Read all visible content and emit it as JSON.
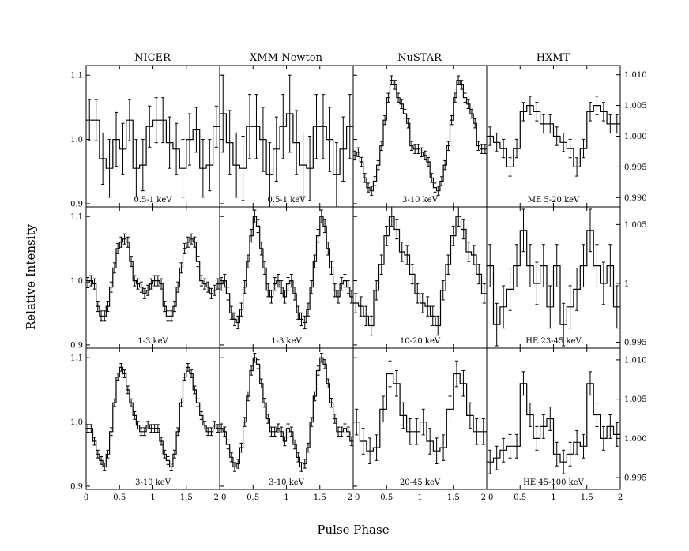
{
  "figure": {
    "xlabel": "Pulse Phase",
    "ylabel": "Relative Intensity",
    "columns": [
      "NICER",
      "XMM-Newton",
      "NuSTAR",
      "HXMT"
    ]
  },
  "chart_data": {
    "type": "line",
    "grid": false,
    "legend": "none",
    "layout_grid": "3x4",
    "xlabel": "Pulse Phase",
    "ylabel": "Relative Intensity",
    "x_ticks": [
      "0",
      "0.5",
      "1",
      "1.5",
      "2"
    ],
    "panels": [
      {
        "column": "NICER",
        "label": "0.5-1 keV",
        "xlim": [
          0,
          2
        ],
        "ylim": [
          0.895,
          1.115
        ],
        "y_ticks": [
          {
            "v": 0.9,
            "t": "0.9"
          },
          {
            "v": 1.0,
            "t": "1.0"
          },
          {
            "v": 1.1,
            "t": "1.1"
          }
        ],
        "y_axis": "left",
        "values": [
          1.03,
          1.03,
          0.97,
          0.955,
          1.0,
          0.985,
          1.03,
          0.955,
          0.96,
          1.02,
          1.03,
          1.03,
          0.995,
          0.985,
          0.955,
          1.0,
          1.015,
          0.955,
          0.96,
          1.02
        ],
        "errors": [
          0.032,
          0.032,
          0.04,
          0.045,
          0.042,
          0.04,
          0.032,
          0.045,
          0.04,
          0.032,
          0.035,
          0.035,
          0.04,
          0.04,
          0.045,
          0.04,
          0.035,
          0.045,
          0.04,
          0.032
        ]
      },
      {
        "column": "XMM-Newton",
        "label": "0.5-1 keV",
        "xlim": [
          0,
          2
        ],
        "ylim": [
          0.895,
          1.115
        ],
        "y_ticks": [
          {
            "v": 0.9,
            "t": ""
          },
          {
            "v": 1.0,
            "t": ""
          },
          {
            "v": 1.1,
            "t": ""
          }
        ],
        "y_axis": "left",
        "values": [
          1.04,
          0.995,
          0.96,
          0.955,
          1.02,
          1.02,
          1.0,
          0.945,
          0.985,
          1.02,
          1.04,
          0.995,
          0.96,
          0.955,
          1.02,
          1.02,
          1.0,
          0.945,
          0.985,
          1.02
        ],
        "errors": [
          0.06,
          0.05,
          0.05,
          0.05,
          0.05,
          0.05,
          0.05,
          0.05,
          0.05,
          0.05,
          0.06,
          0.05,
          0.05,
          0.05,
          0.05,
          0.05,
          0.05,
          0.05,
          0.05,
          0.05
        ]
      },
      {
        "column": "NuSTAR",
        "label": "3-10 keV",
        "xlim": [
          0,
          2
        ],
        "ylim": [
          0.895,
          1.115
        ],
        "y_ticks": [
          {
            "v": 0.9,
            "t": ""
          },
          {
            "v": 1.0,
            "t": ""
          },
          {
            "v": 1.1,
            "t": ""
          }
        ],
        "y_axis": "left",
        "values": [
          0.975,
          0.98,
          0.965,
          0.94,
          0.925,
          0.92,
          0.935,
          0.96,
          0.99,
          1.03,
          1.065,
          1.092,
          1.085,
          1.065,
          1.055,
          1.04,
          1.025,
          0.99,
          0.985,
          0.985,
          0.98,
          0.975,
          0.965,
          0.94,
          0.925,
          0.92,
          0.935,
          0.96,
          0.99,
          1.03,
          1.065,
          1.092,
          1.085,
          1.065,
          1.055,
          1.04,
          1.025,
          0.99,
          0.985,
          0.985
        ],
        "errors": [
          0.007,
          0.007,
          0.007,
          0.007,
          0.007,
          0.007,
          0.007,
          0.007,
          0.007,
          0.007,
          0.007,
          0.007,
          0.007,
          0.007,
          0.007,
          0.007,
          0.007,
          0.007,
          0.007,
          0.007,
          0.007,
          0.007,
          0.007,
          0.007,
          0.007,
          0.007,
          0.007,
          0.007,
          0.007,
          0.007,
          0.007,
          0.007,
          0.007,
          0.007,
          0.007,
          0.007,
          0.007,
          0.007,
          0.007,
          0.007
        ]
      },
      {
        "column": "HXMT",
        "label": "ME 5-20 keV",
        "xlim": [
          0,
          2
        ],
        "ylim": [
          0.9885,
          1.0115
        ],
        "y_ticks": [
          {
            "v": 0.99,
            "t": "0.990"
          },
          {
            "v": 0.995,
            "t": "0.995"
          },
          {
            "v": 1.0,
            "t": "1.000"
          },
          {
            "v": 1.005,
            "t": "1.005"
          },
          {
            "v": 1.01,
            "t": "1.010"
          }
        ],
        "y_axis": "right",
        "values": [
          1.0,
          0.999,
          0.998,
          0.995,
          0.998,
          1.004,
          1.005,
          1.004,
          1.002,
          1.002,
          1.0,
          0.999,
          0.998,
          0.995,
          0.998,
          1.004,
          1.005,
          1.004,
          1.002,
          1.002
        ],
        "errors": [
          0.0015,
          0.0015,
          0.0015,
          0.0015,
          0.0015,
          0.0015,
          0.0015,
          0.0015,
          0.0015,
          0.0015,
          0.0015,
          0.0015,
          0.0015,
          0.0015,
          0.0015,
          0.0015,
          0.0015,
          0.0015,
          0.0015,
          0.0015
        ]
      },
      {
        "column": "NICER",
        "label": "1-3 keV",
        "xlim": [
          0,
          2
        ],
        "ylim": [
          0.895,
          1.115
        ],
        "y_ticks": [
          {
            "v": 0.9,
            "t": "0.9"
          },
          {
            "v": 1.0,
            "t": "1.0"
          },
          {
            "v": 1.1,
            "t": "1.1"
          }
        ],
        "y_axis": "left",
        "values": [
          0.997,
          1.0,
          0.995,
          0.96,
          0.945,
          0.945,
          0.96,
          0.99,
          1.02,
          1.05,
          1.06,
          1.065,
          1.06,
          1.03,
          1.0,
          0.995,
          0.99,
          0.98,
          0.985,
          0.995,
          1.0,
          1.0,
          0.995,
          0.96,
          0.945,
          0.945,
          0.96,
          0.99,
          1.02,
          1.05,
          1.06,
          1.065,
          1.06,
          1.03,
          1.0,
          0.995,
          0.99,
          0.98,
          0.985,
          0.995
        ],
        "errors": [
          0.008,
          0.008,
          0.008,
          0.008,
          0.008,
          0.008,
          0.008,
          0.008,
          0.008,
          0.008,
          0.008,
          0.008,
          0.008,
          0.008,
          0.008,
          0.008,
          0.008,
          0.008,
          0.008,
          0.008,
          0.008,
          0.008,
          0.008,
          0.008,
          0.008,
          0.008,
          0.008,
          0.008,
          0.008,
          0.008,
          0.008,
          0.008,
          0.008,
          0.008,
          0.008,
          0.008,
          0.008,
          0.008,
          0.008,
          0.008
        ]
      },
      {
        "column": "XMM-Newton",
        "label": "1-3 keV",
        "xlim": [
          0,
          2
        ],
        "ylim": [
          0.895,
          1.115
        ],
        "y_ticks": [
          {
            "v": 0.9,
            "t": ""
          },
          {
            "v": 1.0,
            "t": ""
          },
          {
            "v": 1.1,
            "t": ""
          }
        ],
        "y_axis": "left",
        "values": [
          0.995,
          1.0,
          0.98,
          0.95,
          0.94,
          0.935,
          0.955,
          0.99,
          1.03,
          1.07,
          1.1,
          1.085,
          1.05,
          1.02,
          0.985,
          0.975,
          0.995,
          1.0,
          0.99,
          0.975,
          0.995,
          1.0,
          0.98,
          0.95,
          0.94,
          0.935,
          0.955,
          0.99,
          1.03,
          1.07,
          1.1,
          1.085,
          1.05,
          1.02,
          0.985,
          0.975,
          0.995,
          1.0,
          0.99,
          0.975
        ],
        "errors": [
          0.01,
          0.01,
          0.01,
          0.01,
          0.01,
          0.01,
          0.01,
          0.01,
          0.01,
          0.01,
          0.01,
          0.01,
          0.01,
          0.01,
          0.01,
          0.01,
          0.01,
          0.01,
          0.01,
          0.01,
          0.01,
          0.01,
          0.01,
          0.01,
          0.01,
          0.01,
          0.01,
          0.01,
          0.01,
          0.01,
          0.01,
          0.01,
          0.01,
          0.01,
          0.01,
          0.01,
          0.01,
          0.01,
          0.01,
          0.01
        ]
      },
      {
        "column": "NuSTAR",
        "label": "10-20 keV",
        "xlim": [
          0,
          2
        ],
        "ylim": [
          0.895,
          1.115
        ],
        "y_ticks": [
          {
            "v": 0.9,
            "t": ""
          },
          {
            "v": 1.0,
            "t": ""
          },
          {
            "v": 1.1,
            "t": ""
          }
        ],
        "y_axis": "left",
        "values": [
          0.965,
          0.96,
          0.945,
          0.93,
          0.985,
          1.025,
          1.07,
          1.1,
          1.08,
          1.045,
          1.04,
          1.01,
          0.98,
          0.965,
          0.96,
          0.945,
          0.93,
          0.985,
          1.025,
          1.07,
          1.1,
          1.08,
          1.045,
          1.04,
          1.01,
          0.98
        ],
        "errors": [
          0.015,
          0.015,
          0.015,
          0.015,
          0.015,
          0.015,
          0.015,
          0.015,
          0.015,
          0.015,
          0.015,
          0.015,
          0.015,
          0.015,
          0.015,
          0.015,
          0.015,
          0.015,
          0.015,
          0.015,
          0.015,
          0.015,
          0.015,
          0.015,
          0.015,
          0.015
        ]
      },
      {
        "column": "HXMT",
        "label": "HE 23-45 keV",
        "xlim": [
          0,
          2
        ],
        "ylim": [
          0.9945,
          1.0065
        ],
        "y_ticks": [
          {
            "v": 0.995,
            "t": "0.995"
          },
          {
            "v": 1.0,
            "t": "1"
          },
          {
            "v": 1.005,
            "t": "1.005"
          }
        ],
        "y_axis": "right",
        "values": [
          1.0015,
          0.9965,
          0.998,
          0.9995,
          1.0015,
          1.0045,
          1.0015,
          1.0,
          1.0015,
          0.998,
          1.0015,
          0.9965,
          0.998,
          0.9995,
          1.0015,
          1.0045,
          1.0015,
          1.0,
          1.0015,
          0.998
        ],
        "errors": [
          0.0018,
          0.0018,
          0.0018,
          0.0018,
          0.0018,
          0.0018,
          0.0018,
          0.0018,
          0.0018,
          0.0018,
          0.0018,
          0.0018,
          0.0018,
          0.0018,
          0.0018,
          0.0018,
          0.0018,
          0.0018,
          0.0018,
          0.0018
        ]
      },
      {
        "column": "NICER",
        "label": "3-10 keV",
        "xlim": [
          0,
          2
        ],
        "ylim": [
          0.895,
          1.115
        ],
        "y_ticks": [
          {
            "v": 0.9,
            "t": "0.9"
          },
          {
            "v": 1.0,
            "t": "1.0"
          },
          {
            "v": 1.1,
            "t": "1.1"
          }
        ],
        "y_axis": "left",
        "values": [
          0.99,
          0.99,
          0.97,
          0.95,
          0.94,
          0.93,
          0.95,
          0.985,
          1.03,
          1.07,
          1.085,
          1.075,
          1.05,
          1.03,
          1.01,
          0.995,
          0.985,
          0.985,
          0.995,
          0.99,
          0.99,
          0.99,
          0.97,
          0.95,
          0.94,
          0.93,
          0.95,
          0.985,
          1.03,
          1.07,
          1.085,
          1.075,
          1.05,
          1.03,
          1.01,
          0.995,
          0.985,
          0.985,
          0.995,
          0.99
        ],
        "errors": [
          0.006,
          0.006,
          0.006,
          0.006,
          0.006,
          0.006,
          0.006,
          0.006,
          0.006,
          0.006,
          0.006,
          0.006,
          0.006,
          0.006,
          0.006,
          0.006,
          0.006,
          0.006,
          0.006,
          0.006,
          0.006,
          0.006,
          0.006,
          0.006,
          0.006,
          0.006,
          0.006,
          0.006,
          0.006,
          0.006,
          0.006,
          0.006,
          0.006,
          0.006,
          0.006,
          0.006,
          0.006,
          0.006,
          0.006,
          0.006
        ]
      },
      {
        "column": "XMM-Newton",
        "label": "3-10 keV",
        "xlim": [
          0,
          2
        ],
        "ylim": [
          0.895,
          1.115
        ],
        "y_ticks": [
          {
            "v": 0.9,
            "t": ""
          },
          {
            "v": 1.0,
            "t": ""
          },
          {
            "v": 1.1,
            "t": ""
          }
        ],
        "y_axis": "left",
        "values": [
          0.99,
          0.985,
          0.965,
          0.945,
          0.93,
          0.935,
          0.96,
          1.0,
          1.04,
          1.08,
          1.1,
          1.09,
          1.06,
          1.03,
          1.005,
          0.985,
          0.985,
          0.99,
          0.985,
          0.97,
          0.99,
          0.985,
          0.965,
          0.945,
          0.93,
          0.935,
          0.96,
          1.0,
          1.04,
          1.08,
          1.1,
          1.09,
          1.06,
          1.03,
          1.005,
          0.985,
          0.985,
          0.99,
          0.985,
          0.97
        ],
        "errors": [
          0.007,
          0.007,
          0.007,
          0.007,
          0.007,
          0.007,
          0.007,
          0.007,
          0.007,
          0.007,
          0.007,
          0.007,
          0.007,
          0.007,
          0.007,
          0.007,
          0.007,
          0.007,
          0.007,
          0.007,
          0.007,
          0.007,
          0.007,
          0.007,
          0.007,
          0.007,
          0.007,
          0.007,
          0.007,
          0.007,
          0.007,
          0.007,
          0.007,
          0.007,
          0.007,
          0.007,
          0.007,
          0.007,
          0.007,
          0.007
        ]
      },
      {
        "column": "NuSTAR",
        "label": "20-45 keV",
        "xlim": [
          0,
          2
        ],
        "ylim": [
          0.895,
          1.115
        ],
        "y_ticks": [
          {
            "v": 0.9,
            "t": ""
          },
          {
            "v": 1.0,
            "t": ""
          },
          {
            "v": 1.1,
            "t": ""
          }
        ],
        "y_axis": "left",
        "values": [
          1.0,
          0.97,
          0.955,
          0.96,
          1.02,
          1.075,
          1.06,
          1.01,
          0.985,
          0.985,
          1.0,
          0.97,
          0.955,
          0.96,
          1.02,
          1.075,
          1.06,
          1.01,
          0.985,
          0.985
        ],
        "errors": [
          0.02,
          0.02,
          0.02,
          0.02,
          0.02,
          0.02,
          0.02,
          0.02,
          0.02,
          0.02,
          0.02,
          0.02,
          0.02,
          0.02,
          0.02,
          0.02,
          0.02,
          0.02,
          0.02,
          0.02
        ]
      },
      {
        "column": "HXMT",
        "label": "HE 45-100 keV",
        "xlim": [
          0,
          2
        ],
        "ylim": [
          0.9935,
          1.0115
        ],
        "y_ticks": [
          {
            "v": 0.995,
            "t": "0.995"
          },
          {
            "v": 1.0,
            "t": "1.000"
          },
          {
            "v": 1.005,
            "t": "1.005"
          },
          {
            "v": 1.01,
            "t": "1.010"
          }
        ],
        "y_axis": "right",
        "values": [
          0.997,
          0.9975,
          0.9985,
          0.999,
          0.999,
          1.007,
          1.003,
          1.0,
          1.0015,
          1.0025,
          0.998,
          0.997,
          0.998,
          0.9995,
          0.999,
          1.007,
          1.003,
          1.0,
          1.0015,
          1.0005
        ],
        "errors": [
          0.0015,
          0.0015,
          0.0015,
          0.0015,
          0.0015,
          0.0015,
          0.0015,
          0.0015,
          0.0015,
          0.0015,
          0.0015,
          0.0015,
          0.0015,
          0.0015,
          0.0015,
          0.0015,
          0.0015,
          0.0015,
          0.0015,
          0.0015
        ]
      }
    ]
  }
}
